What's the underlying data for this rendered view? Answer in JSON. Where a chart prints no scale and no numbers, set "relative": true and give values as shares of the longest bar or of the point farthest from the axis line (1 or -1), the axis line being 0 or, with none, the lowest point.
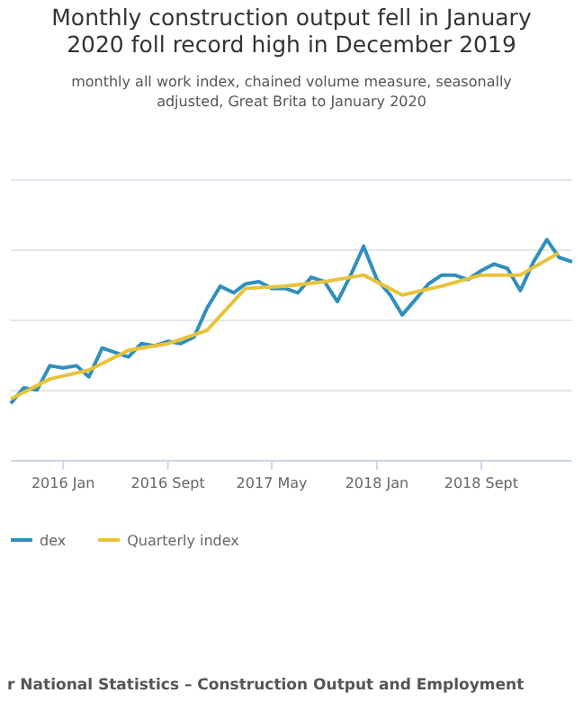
{
  "chart_data": {
    "type": "line",
    "title": "Monthly construction output fell in January 2020 foll record high in December 2019",
    "subtitle": "monthly all work index, chained volume measure, seasonally adjusted, Great Brita to January 2020",
    "relative": true,
    "xlim": [
      "2015-09",
      "2019-04"
    ],
    "xticks": [
      {
        "value": "2016-01",
        "label": "2016 Jan"
      },
      {
        "value": "2016-09",
        "label": "2016 Sept"
      },
      {
        "value": "2017-05",
        "label": "2017 May"
      },
      {
        "value": "2018-01",
        "label": "2018 Jan"
      },
      {
        "value": "2018-09",
        "label": "2018 Sept"
      }
    ],
    "grid": "y",
    "legend": "bottom",
    "marker": "none",
    "line_style": "solid",
    "series": [
      {
        "name": "dex",
        "color": "#2f8fbd",
        "x": [
          "2015-09",
          "2015-10",
          "2015-11",
          "2015-12",
          "2016-01",
          "2016-02",
          "2016-03",
          "2016-04",
          "2016-05",
          "2016-06",
          "2016-07",
          "2016-08",
          "2016-09",
          "2016-10",
          "2016-11",
          "2016-12",
          "2017-01",
          "2017-02",
          "2017-03",
          "2017-04",
          "2017-05",
          "2017-06",
          "2017-07",
          "2017-08",
          "2017-09",
          "2017-10",
          "2017-11",
          "2017-12",
          "2018-01",
          "2018-02",
          "2018-03",
          "2018-04",
          "2018-05",
          "2018-06",
          "2018-07",
          "2018-08",
          "2018-09",
          "2018-10",
          "2018-11",
          "2018-12",
          "2019-01",
          "2019-02",
          "2019-03",
          "2019-04"
        ],
        "values": [
          0.26,
          0.33,
          0.32,
          0.43,
          0.42,
          0.43,
          0.38,
          0.51,
          0.49,
          0.47,
          0.53,
          0.52,
          0.54,
          0.53,
          0.56,
          0.69,
          0.79,
          0.76,
          0.8,
          0.81,
          0.78,
          0.78,
          0.76,
          0.83,
          0.81,
          0.72,
          0.84,
          0.97,
          0.82,
          0.75,
          0.66,
          0.73,
          0.8,
          0.84,
          0.84,
          0.82,
          0.86,
          0.89,
          0.87,
          0.77,
          0.9,
          1,
          0.92,
          0.9
        ]
      },
      {
        "name": "Quarterly index",
        "color": "#e8c33a",
        "x": [
          "2015-09",
          "2015-12",
          "2016-03",
          "2016-06",
          "2016-09",
          "2016-12",
          "2017-03",
          "2017-06",
          "2017-09",
          "2017-12",
          "2018-03",
          "2018-06",
          "2018-09",
          "2018-12",
          "2019-03"
        ],
        "values": [
          0.28,
          0.37,
          0.41,
          0.5,
          0.53,
          0.59,
          0.78,
          0.79,
          0.81,
          0.84,
          0.75,
          0.79,
          0.84,
          0.84,
          0.94
        ]
      }
    ],
    "annotations": [
      "r National Statistics – Construction Output and Employment"
    ]
  }
}
